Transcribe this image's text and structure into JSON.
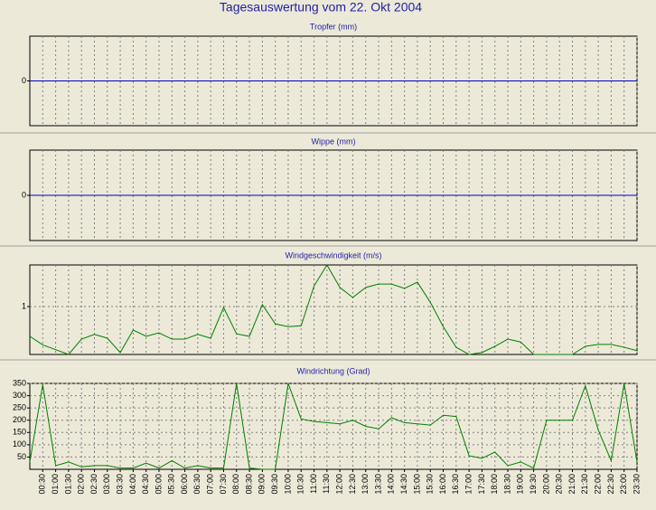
{
  "title": "Tagesauswertung vom 22. Okt 2004",
  "chart_data": [
    {
      "type": "line",
      "title": "Tropfer (mm)",
      "ylim": [
        -1,
        1
      ],
      "yticks": [
        0
      ],
      "grid": false,
      "series": [
        {
          "color": "#0000c8",
          "values": [
            0,
            0,
            0,
            0,
            0,
            0,
            0,
            0,
            0,
            0,
            0,
            0,
            0,
            0,
            0,
            0,
            0,
            0,
            0,
            0,
            0,
            0,
            0,
            0,
            0,
            0,
            0,
            0,
            0,
            0,
            0,
            0,
            0,
            0,
            0,
            0,
            0,
            0,
            0,
            0,
            0,
            0,
            0,
            0,
            0,
            0,
            0,
            0
          ]
        }
      ]
    },
    {
      "type": "line",
      "title": "Wippe (mm)",
      "ylim": [
        -1,
        1
      ],
      "yticks": [
        0
      ],
      "grid": false,
      "series": [
        {
          "color": "#0000c8",
          "values": [
            0,
            0,
            0,
            0,
            0,
            0,
            0,
            0,
            0,
            0,
            0,
            0,
            0,
            0,
            0,
            0,
            0,
            0,
            0,
            0,
            0,
            0,
            0,
            0,
            0,
            0,
            0,
            0,
            0,
            0,
            0,
            0,
            0,
            0,
            0,
            0,
            0,
            0,
            0,
            0,
            0,
            0,
            0,
            0,
            0,
            0,
            0,
            0
          ]
        }
      ]
    },
    {
      "type": "line",
      "title": "Windgeschwindigkeit (m/s)",
      "ylim": [
        0,
        1.87
      ],
      "yticks": [
        1
      ],
      "grid": true,
      "series": [
        {
          "color": "#008000",
          "values": [
            0.38,
            0.2,
            0.1,
            0,
            0.32,
            0.42,
            0.34,
            0.04,
            0.51,
            0.38,
            0.45,
            0.32,
            0.32,
            0.42,
            0.34,
            0.98,
            0.43,
            0.38,
            1.04,
            0.64,
            0.58,
            0.6,
            1.43,
            1.87,
            1.4,
            1.19,
            1.4,
            1.47,
            1.47,
            1.38,
            1.51,
            1.09,
            0.58,
            0.15,
            0,
            0.04,
            0.17,
            0.32,
            0.26,
            0,
            0,
            0,
            0,
            0.17,
            0.21,
            0.21,
            0.15,
            0.08
          ]
        }
      ]
    },
    {
      "type": "line",
      "title": "Windrichtung (Grad)",
      "ylim": [
        0,
        350
      ],
      "yticks": [
        50,
        100,
        150,
        200,
        250,
        300,
        350
      ],
      "grid": true,
      "categories": [
        null,
        "00:30",
        "01:00",
        "01:30",
        "02:00",
        "02:30",
        "03:00",
        "03:30",
        "04:00",
        "04:30",
        "05:00",
        "05:30",
        "06:00",
        "06:30",
        "07:00",
        "07:30",
        "08:00",
        "08:30",
        "09:00",
        "09:30",
        "10:00",
        "10:30",
        "11:00",
        "11:30",
        "12:00",
        "12:30",
        "13:00",
        "13:30",
        "14:00",
        "14:30",
        "15:00",
        "15:30",
        "16:00",
        "16:30",
        "17:00",
        "17:30",
        "18:00",
        "18:30",
        "19:00",
        "19:30",
        "20:00",
        "20:30",
        "21:00",
        "21:30",
        "22:00",
        "22:30",
        "23:00",
        "23:30"
      ],
      "series": [
        {
          "color": "#008000",
          "values": [
            30,
            345,
            15,
            30,
            10,
            15,
            15,
            5,
            5,
            25,
            5,
            35,
            5,
            15,
            5,
            5,
            350,
            5,
            0,
            0,
            350,
            205,
            195,
            190,
            185,
            200,
            175,
            165,
            210,
            190,
            185,
            180,
            220,
            215,
            55,
            45,
            70,
            15,
            30,
            5,
            200,
            200,
            200,
            340,
            160,
            35,
            350,
            30
          ]
        }
      ]
    }
  ]
}
